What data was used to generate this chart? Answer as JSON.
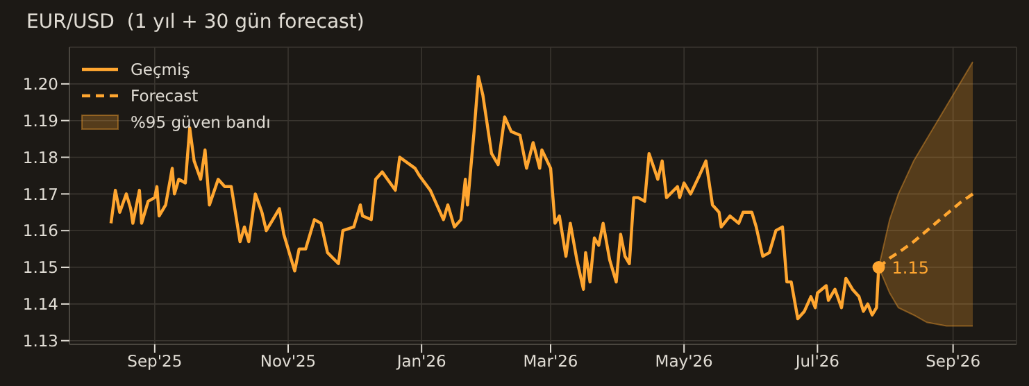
{
  "chart_data": {
    "type": "line",
    "title": "EUR/USD  (1 yıl + 30 gün forecast)",
    "xlim": [
      "2025-07-24",
      "2026-09-30"
    ],
    "xticks": [
      {
        "value": "2025-09-01",
        "label": "Sep'25"
      },
      {
        "value": "2025-11-01",
        "label": "Nov'25"
      },
      {
        "value": "2026-01-01",
        "label": "Jan'26"
      },
      {
        "value": "2026-03-01",
        "label": "Mar'26"
      },
      {
        "value": "2026-05-01",
        "label": "May'26"
      },
      {
        "value": "2026-07-01",
        "label": "Jul'26"
      },
      {
        "value": "2026-09-01",
        "label": "Sep'26"
      }
    ],
    "ylim": [
      1.129,
      1.21
    ],
    "yticks": [
      1.13,
      1.14,
      1.15,
      1.16,
      1.17,
      1.18,
      1.19,
      {
        "value": 1.2,
        "label": "1.20"
      }
    ],
    "grid": true,
    "legend": "top left",
    "marker": "none",
    "series": [
      {
        "name": "Geçmiş",
        "color": "#ffa630",
        "line_style": "solid",
        "x": [
          "2025-08-12",
          "2025-08-14",
          "2025-08-16",
          "2025-08-19",
          "2025-08-21",
          "2025-08-22",
          "2025-08-25",
          "2025-08-26",
          "2025-08-29",
          "2025-09-01",
          "2025-09-02",
          "2025-09-03",
          "2025-09-06",
          "2025-09-09",
          "2025-09-10",
          "2025-09-12",
          "2025-09-15",
          "2025-09-17",
          "2025-09-19",
          "2025-09-22",
          "2025-09-24",
          "2025-09-26",
          "2025-09-30",
          "2025-10-03",
          "2025-10-06",
          "2025-10-10",
          "2025-10-12",
          "2025-10-14",
          "2025-10-17",
          "2025-10-20",
          "2025-10-22",
          "2025-10-25",
          "2025-10-28",
          "2025-10-30",
          "2025-11-04",
          "2025-11-06",
          "2025-11-09",
          "2025-11-13",
          "2025-11-16",
          "2025-11-19",
          "2025-11-24",
          "2025-11-26",
          "2025-12-01",
          "2025-12-04",
          "2025-12-05",
          "2025-12-09",
          "2025-12-11",
          "2025-12-14",
          "2025-12-20",
          "2025-12-22",
          "2025-12-29",
          "2025-12-31",
          "2026-01-05",
          "2026-01-11",
          "2026-01-13",
          "2026-01-16",
          "2026-01-19",
          "2026-01-21",
          "2026-01-22",
          "2026-01-25",
          "2026-01-27",
          "2026-01-29",
          "2026-02-02",
          "2026-02-05",
          "2026-02-08",
          "2026-02-11",
          "2026-02-15",
          "2026-02-18",
          "2026-02-21",
          "2026-02-24",
          "2026-02-25",
          "2026-03-01",
          "2026-03-03",
          "2026-03-05",
          "2026-03-08",
          "2026-03-10",
          "2026-03-13",
          "2026-03-16",
          "2026-03-17",
          "2026-03-19",
          "2026-03-21",
          "2026-03-23",
          "2026-03-25",
          "2026-03-28",
          "2026-03-31",
          "2026-04-02",
          "2026-04-04",
          "2026-04-06",
          "2026-04-08",
          "2026-04-10",
          "2026-04-13",
          "2026-04-15",
          "2026-04-19",
          "2026-04-21",
          "2026-04-23",
          "2026-04-28",
          "2026-04-29",
          "2026-05-01",
          "2026-05-04",
          "2026-05-08",
          "2026-05-11",
          "2026-05-14",
          "2026-05-17",
          "2026-05-18",
          "2026-05-22",
          "2026-05-26",
          "2026-05-28",
          "2026-06-01",
          "2026-06-03",
          "2026-06-06",
          "2026-06-09",
          "2026-06-12",
          "2026-06-15",
          "2026-06-17",
          "2026-06-19",
          "2026-06-22",
          "2026-06-25",
          "2026-06-28",
          "2026-06-30",
          "2026-07-01",
          "2026-07-05",
          "2026-07-06",
          "2026-07-09",
          "2026-07-12",
          "2026-07-14",
          "2026-07-17",
          "2026-07-20",
          "2026-07-22",
          "2026-07-24",
          "2026-07-26",
          "2026-07-28",
          "2026-07-29"
        ],
        "values": [
          1.162,
          1.171,
          1.165,
          1.17,
          1.166,
          1.162,
          1.171,
          1.162,
          1.168,
          1.169,
          1.172,
          1.164,
          1.167,
          1.177,
          1.17,
          1.174,
          1.173,
          1.188,
          1.179,
          1.174,
          1.182,
          1.167,
          1.174,
          1.172,
          1.172,
          1.157,
          1.161,
          1.157,
          1.17,
          1.165,
          1.16,
          1.163,
          1.166,
          1.159,
          1.149,
          1.155,
          1.155,
          1.163,
          1.162,
          1.154,
          1.151,
          1.16,
          1.161,
          1.167,
          1.164,
          1.163,
          1.174,
          1.176,
          1.171,
          1.18,
          1.177,
          1.175,
          1.171,
          1.163,
          1.167,
          1.161,
          1.163,
          1.174,
          1.167,
          1.187,
          1.202,
          1.197,
          1.181,
          1.178,
          1.191,
          1.187,
          1.186,
          1.177,
          1.184,
          1.177,
          1.182,
          1.177,
          1.162,
          1.164,
          1.153,
          1.162,
          1.152,
          1.144,
          1.154,
          1.146,
          1.158,
          1.156,
          1.162,
          1.152,
          1.146,
          1.159,
          1.153,
          1.151,
          1.169,
          1.169,
          1.168,
          1.181,
          1.174,
          1.179,
          1.169,
          1.172,
          1.169,
          1.173,
          1.17,
          1.175,
          1.179,
          1.167,
          1.165,
          1.161,
          1.164,
          1.162,
          1.165,
          1.165,
          1.161,
          1.153,
          1.154,
          1.16,
          1.161,
          1.146,
          1.146,
          1.136,
          1.138,
          1.142,
          1.139,
          1.143,
          1.145,
          1.141,
          1.144,
          1.139,
          1.147,
          1.144,
          1.142,
          1.138,
          1.14,
          1.137,
          1.139,
          1.15
        ]
      },
      {
        "name": "Forecast",
        "color": "#ffa630",
        "line_style": "dashed",
        "x": [
          "2026-07-29",
          "2026-08-03",
          "2026-08-07",
          "2026-08-14",
          "2026-08-20",
          "2026-08-29",
          "2026-09-04",
          "2026-09-10"
        ],
        "values": [
          1.15,
          1.1525,
          1.154,
          1.157,
          1.16,
          1.1645,
          1.1675,
          1.17
        ],
        "lower": [
          1.15,
          1.143,
          1.139,
          1.137,
          1.135,
          1.134,
          1.134,
          1.134
        ],
        "upper": [
          1.15,
          1.163,
          1.17,
          1.179,
          1.185,
          1.194,
          1.2,
          1.206
        ]
      }
    ],
    "annotations": [
      "%95 güven bandı",
      {
        "text": "1.15",
        "x": "2026-07-29",
        "y": 1.15
      }
    ]
  }
}
